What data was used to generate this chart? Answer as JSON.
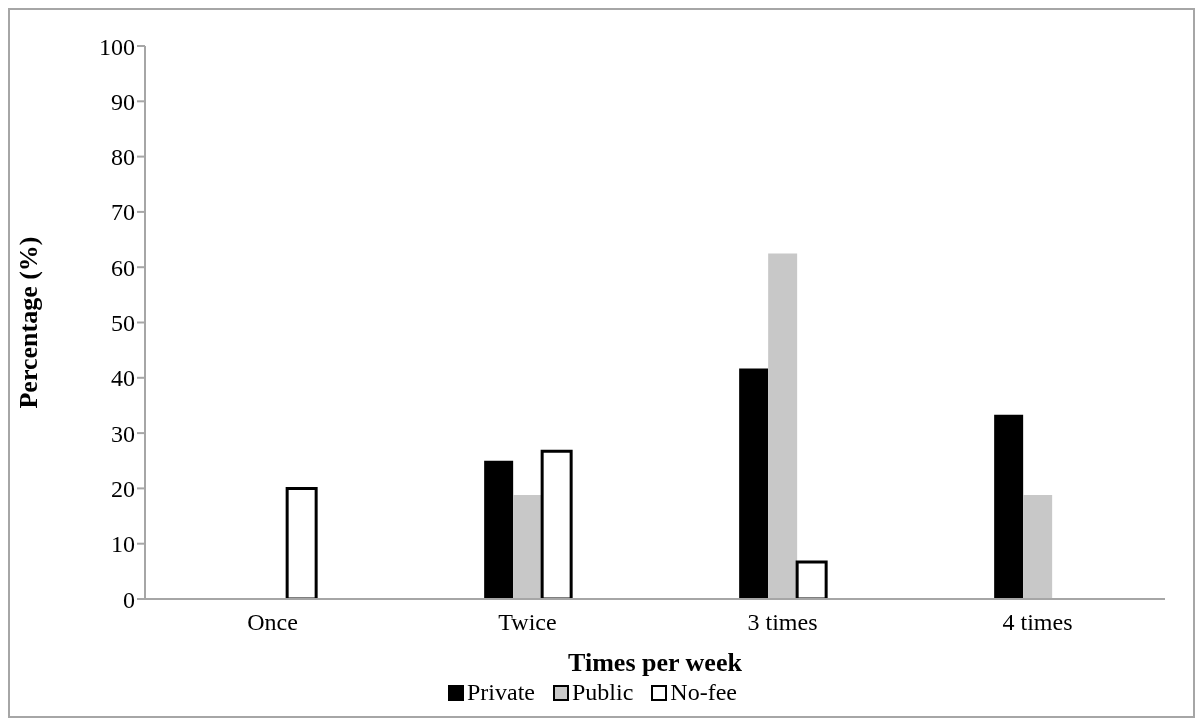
{
  "chart_data": {
    "type": "bar",
    "xlabel": "Times per week",
    "ylabel": "Percentage (%)",
    "categories": [
      "Once",
      "Twice",
      "3 times",
      "4 times"
    ],
    "series": [
      {
        "name": "Private",
        "color": "#000000",
        "values": [
          0,
          25,
          41.7,
          33.3
        ]
      },
      {
        "name": "Public",
        "color": "#c8c8c8",
        "values": [
          0,
          18.8,
          62.5,
          18.8
        ]
      },
      {
        "name": "No-fee",
        "color": "#ffffff",
        "values": [
          20,
          26.7,
          6.7,
          0
        ]
      }
    ],
    "ylim": [
      0,
      100
    ],
    "yticks": [
      0,
      10,
      20,
      30,
      40,
      50,
      60,
      70,
      80,
      90,
      100
    ],
    "grid": false,
    "legend": "bottom"
  }
}
